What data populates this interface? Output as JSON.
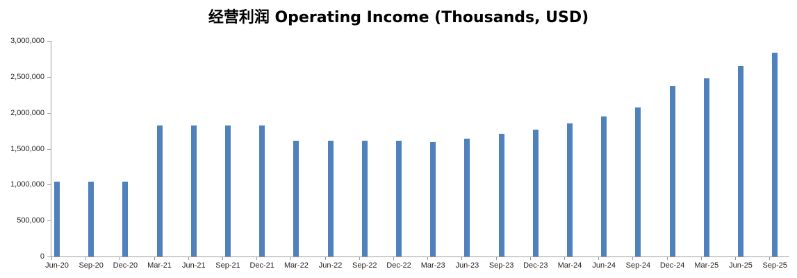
{
  "chart_data": {
    "type": "bar",
    "title": "经营利润 Operating Income (Thousands, USD)",
    "categories": [
      "Jun-20",
      "Sep-20",
      "Dec-20",
      "Mar-21",
      "Jun-21",
      "Sep-21",
      "Dec-21",
      "Mar-22",
      "Jun-22",
      "Sep-22",
      "Dec-22",
      "Mar-23",
      "Jun-23",
      "Sep-23",
      "Dec-23",
      "Mar-24",
      "Jun-24",
      "Sep-24",
      "Dec-24",
      "Mar-25",
      "Jun-25",
      "Sep-25"
    ],
    "values": [
      1040000,
      1040000,
      1040000,
      1820000,
      1820000,
      1820000,
      1820000,
      1610000,
      1610000,
      1610000,
      1610000,
      1590000,
      1640000,
      1710000,
      1770000,
      1850000,
      1950000,
      2070000,
      2370000,
      2480000,
      2650000,
      2840000
    ],
    "xlabel": "",
    "ylabel": "",
    "ylim": [
      0,
      3000000
    ],
    "ytick_step": 500000,
    "ytick_labels": [
      "0",
      "500,000",
      "1,000,000",
      "1,500,000",
      "2,000,000",
      "2,500,000",
      "3,000,000"
    ],
    "grid": false,
    "legend": false,
    "bar_color": "#4F81BD",
    "axis_color": "#9B9B9B",
    "label_color": "#1F1F1F",
    "background": "#FFFFFF"
  }
}
